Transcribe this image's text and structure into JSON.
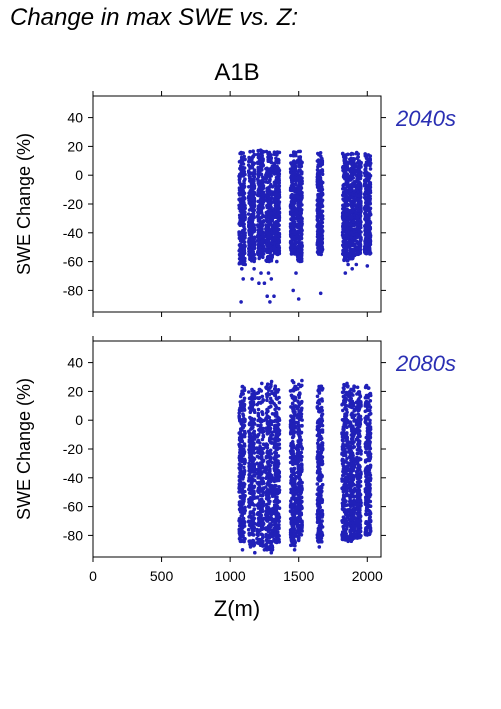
{
  "title": "Change in max SWE vs. Z:",
  "chart_data": {
    "type": "scatter",
    "scenario": "A1B",
    "xlabel": "Z(m)",
    "xlim": [
      0,
      2100
    ],
    "x_ticks": [
      0,
      500,
      1000,
      1500,
      2000
    ],
    "color": "#2020b8",
    "panels": [
      {
        "period": "2040s",
        "ylabel": "SWE Change (%)",
        "ylim": [
          -95,
          55
        ],
        "y_ticks": [
          40,
          20,
          0,
          -20,
          -40,
          -60,
          -80
        ],
        "clusters": [
          {
            "z_range": [
              1065,
              1110
            ],
            "y_range": [
              -62,
              17
            ]
          },
          {
            "z_range": [
              1135,
              1180
            ],
            "y_range": [
              -60,
              17
            ]
          },
          {
            "z_range": [
              1200,
              1245
            ],
            "y_range": [
              -58,
              18
            ]
          },
          {
            "z_range": [
              1260,
              1310
            ],
            "y_range": [
              -60,
              17
            ]
          },
          {
            "z_range": [
              1320,
              1360
            ],
            "y_range": [
              -55,
              17
            ]
          },
          {
            "z_range": [
              1440,
              1480
            ],
            "y_range": [
              -55,
              17
            ]
          },
          {
            "z_range": [
              1490,
              1525
            ],
            "y_range": [
              -60,
              18
            ]
          },
          {
            "z_range": [
              1635,
              1675
            ],
            "y_range": [
              -55,
              16
            ]
          },
          {
            "z_range": [
              1820,
              1860
            ],
            "y_range": [
              -60,
              16
            ]
          },
          {
            "z_range": [
              1870,
              1910
            ],
            "y_range": [
              -58,
              16
            ]
          },
          {
            "z_range": [
              1920,
              1955
            ],
            "y_range": [
              -55,
              16
            ]
          },
          {
            "z_range": [
              1980,
              2025
            ],
            "y_range": [
              -55,
              16
            ]
          }
        ],
        "outliers": [
          [
            1080,
            -88
          ],
          [
            1095,
            -72
          ],
          [
            1085,
            -65
          ],
          [
            1110,
            -62
          ],
          [
            1160,
            -72
          ],
          [
            1175,
            -65
          ],
          [
            1210,
            -75
          ],
          [
            1225,
            -68
          ],
          [
            1250,
            -75
          ],
          [
            1280,
            -68
          ],
          [
            1270,
            -84
          ],
          [
            1290,
            -88
          ],
          [
            1300,
            -72
          ],
          [
            1320,
            -84
          ],
          [
            1340,
            -60
          ],
          [
            1460,
            -80
          ],
          [
            1480,
            -68
          ],
          [
            1500,
            -86
          ],
          [
            1660,
            -82
          ],
          [
            1840,
            -68
          ],
          [
            1860,
            -62
          ],
          [
            1890,
            -65
          ],
          [
            1920,
            -62
          ],
          [
            2000,
            -63
          ]
        ]
      },
      {
        "period": "2080s",
        "ylabel": "SWE Change (%)",
        "ylim": [
          -95,
          55
        ],
        "y_ticks": [
          40,
          20,
          0,
          -20,
          -40,
          -60,
          -80
        ],
        "clusters": [
          {
            "z_range": [
              1065,
              1110
            ],
            "y_range": [
              -85,
              26
            ]
          },
          {
            "z_range": [
              1135,
              1180
            ],
            "y_range": [
              -88,
              25
            ]
          },
          {
            "z_range": [
              1195,
              1245
            ],
            "y_range": [
              -88,
              27
            ]
          },
          {
            "z_range": [
              1260,
              1310
            ],
            "y_range": [
              -90,
              27
            ]
          },
          {
            "z_range": [
              1320,
              1360
            ],
            "y_range": [
              -85,
              26
            ]
          },
          {
            "z_range": [
              1440,
              1480
            ],
            "y_range": [
              -88,
              28
            ]
          },
          {
            "z_range": [
              1490,
              1525
            ],
            "y_range": [
              -85,
              29
            ]
          },
          {
            "z_range": [
              1635,
              1675
            ],
            "y_range": [
              -85,
              24
            ]
          },
          {
            "z_range": [
              1815,
              1860
            ],
            "y_range": [
              -85,
              26
            ]
          },
          {
            "z_range": [
              1870,
              1910
            ],
            "y_range": [
              -85,
              25
            ]
          },
          {
            "z_range": [
              1920,
              1955
            ],
            "y_range": [
              -82,
              24
            ]
          },
          {
            "z_range": [
              1985,
              2025
            ],
            "y_range": [
              -80,
              25
            ]
          }
        ],
        "outliers": [
          [
            1090,
            -90
          ],
          [
            1180,
            -92
          ],
          [
            1250,
            -90
          ],
          [
            1300,
            -92
          ],
          [
            1470,
            -90
          ],
          [
            1650,
            -88
          ]
        ]
      }
    ]
  }
}
